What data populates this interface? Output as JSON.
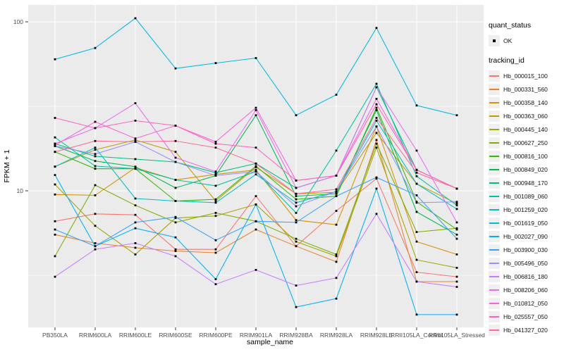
{
  "figure": {
    "background": "#FFFFFF",
    "panel_background": "#EBEBEB",
    "gridline_color": "#FFFFFF",
    "tick_mark_color": "#333333",
    "tick_label_color": "#4D4D4D",
    "point_color": "#000000"
  },
  "legend": {
    "quant_status_title": "quant_status",
    "quant_status_items": [
      {
        "label": "OK",
        "marker": "black-square-point"
      }
    ],
    "tracking_id_title": "tracking_id"
  },
  "chart_data": {
    "type": "line",
    "title": "",
    "xlabel": "sample_name",
    "ylabel": "FPKM + 1",
    "y_scale": "log10",
    "y_ticks": [
      10,
      100
    ],
    "y_minor_ticks": [
      3.1623,
      31.623
    ],
    "ylim": [
      1.56,
      126
    ],
    "grid": true,
    "legend_position": "right",
    "point_shape": "small-black-square",
    "categories": [
      "PB350LA",
      "RRIM600LA",
      "RRIM600LE",
      "RRIM600SE",
      "RRIM600PE",
      "RRIM901LA",
      "RRIM928BA",
      "RRIM928LA",
      "RRIM928LE",
      "RRII105LA_Control",
      "RRII105LA_Stressed"
    ],
    "series": [
      {
        "id": "Hb_000015_100",
        "color": "#F8766D",
        "values": [
          6.6,
          7.3,
          7.2,
          4.5,
          4.5,
          9.3,
          4.7,
          7.6,
          11.8,
          3.3,
          3.1
        ]
      },
      {
        "id": "Hb_000331_560",
        "color": "#EA8331",
        "values": [
          5.5,
          4.9,
          4.6,
          4.4,
          4.3,
          5.9,
          4.7,
          3.8,
          20,
          2.9,
          2.9
        ]
      },
      {
        "id": "Hb_000358_140",
        "color": "#D89000",
        "values": [
          9.5,
          9.4,
          13.7,
          11.6,
          12.5,
          13.3,
          6.7,
          6.3,
          24,
          5.0,
          4.2
        ]
      },
      {
        "id": "Hb_000363_060",
        "color": "#C09B00",
        "values": [
          13.9,
          17.5,
          20,
          17,
          8.7,
          13.8,
          9.6,
          9.8,
          22,
          11,
          8.4
        ]
      },
      {
        "id": "Hb_000445_140",
        "color": "#A3A500",
        "values": [
          10.9,
          6.2,
          4.2,
          6.9,
          7.1,
          8.3,
          5.0,
          4.1,
          18,
          3.9,
          3.5
        ]
      },
      {
        "id": "Hb_000627_250",
        "color": "#7CAE00",
        "values": [
          4.1,
          10.8,
          8.2,
          6.5,
          7.4,
          6.6,
          5.2,
          4.2,
          19,
          5.7,
          6.0
        ]
      },
      {
        "id": "Hb_000816_100",
        "color": "#39B600",
        "values": [
          17.0,
          13.5,
          13.5,
          8.7,
          8.9,
          14.0,
          8.9,
          9.3,
          31,
          8.6,
          5.9
        ]
      },
      {
        "id": "Hb_000849_020",
        "color": "#00BB4E",
        "values": [
          18.4,
          15.0,
          13.9,
          10.4,
          12.3,
          28.0,
          9.3,
          9.6,
          30,
          7.5,
          5.5
        ]
      },
      {
        "id": "Hb_000948_170",
        "color": "#00BF7D",
        "values": [
          19.0,
          16.0,
          15.4,
          14.8,
          12.8,
          14.5,
          10.4,
          12.3,
          41,
          13.3,
          10.3
        ]
      },
      {
        "id": "Hb_001089_060",
        "color": "#00C1A3",
        "values": [
          20.7,
          14.0,
          13.5,
          11.6,
          10.7,
          13.0,
          7.4,
          17.3,
          43,
          12.2,
          8.2
        ]
      },
      {
        "id": "Hb_001259_020",
        "color": "#00BFC4",
        "values": [
          13.9,
          18.0,
          9.0,
          8.7,
          8.5,
          12.5,
          8.5,
          9.9,
          26,
          11.0,
          7.8
        ]
      },
      {
        "id": "Hb_001619_050",
        "color": "#00BAE0",
        "values": [
          60,
          70,
          105,
          53,
          57,
          61,
          28,
          37,
          92,
          32,
          28
        ]
      },
      {
        "id": "Hb_002027_090",
        "color": "#00B0F6",
        "values": [
          12.4,
          4.7,
          6.0,
          5.3,
          3.0,
          8.3,
          2.05,
          2.3,
          10.3,
          1.85,
          1.85
        ]
      },
      {
        "id": "Hb_003900_030",
        "color": "#35A2FF",
        "values": [
          5.9,
          4.7,
          6.5,
          7.0,
          5.1,
          6.6,
          6.5,
          9.3,
          12.0,
          9.4,
          5.2
        ]
      },
      {
        "id": "Hb_005496_050",
        "color": "#9590FF",
        "values": [
          18.4,
          16.5,
          19.5,
          14.8,
          12.3,
          13.0,
          8.1,
          9.9,
          24,
          8.5,
          8.6
        ]
      },
      {
        "id": "Hb_006816_180",
        "color": "#C77CFF",
        "values": [
          3.1,
          4.5,
          4.9,
          4.1,
          2.8,
          3.4,
          2.75,
          3.05,
          7.3,
          2.9,
          2.7
        ]
      },
      {
        "id": "Hb_008206_060",
        "color": "#E76BF3",
        "values": [
          19.0,
          23.5,
          33.0,
          15.7,
          13.0,
          30.0,
          10.4,
          12.3,
          41,
          17.3,
          6.5
        ]
      },
      {
        "id": "Hb_010812_050",
        "color": "#FA62DB",
        "values": [
          18.6,
          25.6,
          20.4,
          24.3,
          19.5,
          31.0,
          11.5,
          12.3,
          35,
          13.3,
          10.3
        ]
      },
      {
        "id": "Hb_025557_050",
        "color": "#FF62BC",
        "values": [
          27.0,
          23.5,
          26.0,
          24.3,
          19.0,
          18.0,
          11.5,
          12.3,
          32.5,
          13.3,
          10.3
        ]
      },
      {
        "id": "Hb_041327_020",
        "color": "#FF6A98",
        "values": [
          17.0,
          19.7,
          19.5,
          19.7,
          18.0,
          14.5,
          9.6,
          10.2,
          27,
          12.8,
          10.3
        ]
      }
    ]
  }
}
